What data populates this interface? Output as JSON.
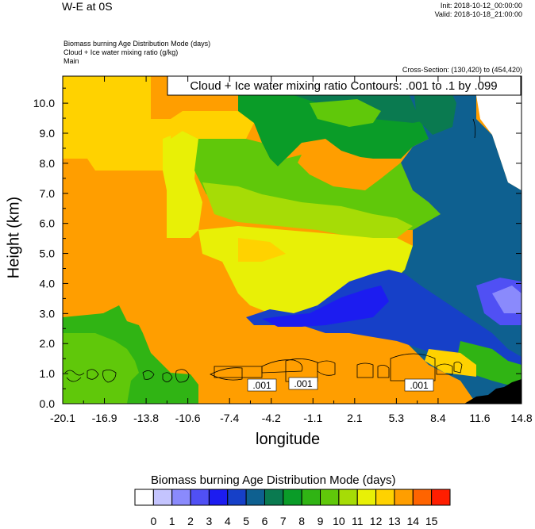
{
  "header": {
    "title": "W-E at 0S",
    "init": "Init: 2018-10-12_00:00:00",
    "valid": "Valid: 2018-10-18_21:00:00",
    "field1": "Biomass burning Age Distribution Mode   (days)",
    "field2": "Cloud + Ice water mixing ratio   (g/kg)",
    "field3": "Main",
    "cross_section": "Cross-Section: (130,420) to (454,420)"
  },
  "chart_data": {
    "type": "heatmap",
    "title": "W-E at 0S",
    "xlabel": "longitude",
    "ylabel": "Height (km)",
    "x_ticks": [
      "-20.1",
      "-16.9",
      "-13.8",
      "-10.6",
      "-7.4",
      "-4.2",
      "-1.1",
      "2.1",
      "5.3",
      "8.4",
      "11.6",
      "14.8"
    ],
    "y_ticks": [
      "0.0",
      "1.0",
      "2.0",
      "3.0",
      "4.0",
      "5.0",
      "6.0",
      "7.0",
      "8.0",
      "9.0",
      "10.0"
    ],
    "xlim": [
      -20.1,
      14.8
    ],
    "ylim": [
      0,
      10.9
    ],
    "contour_label": "Cloud + Ice water mixing ratio Contours: .001 to .1 by .099",
    "contour_values": [
      ".001",
      ".001",
      ".001"
    ],
    "colorbar": {
      "title": "Biomass burning Age Distribution Mode  (days)",
      "labels": [
        "0",
        "1",
        "2",
        "3",
        "4",
        "5",
        "6",
        "7",
        "8",
        "9",
        "10",
        "11",
        "12",
        "13",
        "14",
        "15"
      ],
      "colors": [
        "#ffffff",
        "#c4c4fe",
        "#8a8afc",
        "#5050f4",
        "#1c1cf0",
        "#1640c8",
        "#0e6090",
        "#0a7a50",
        "#0a9c28",
        "#30b414",
        "#60c80a",
        "#a6dc06",
        "#e8f006",
        "#ffd200",
        "#ff9e00",
        "#ff6400",
        "#ff1e00"
      ]
    }
  }
}
